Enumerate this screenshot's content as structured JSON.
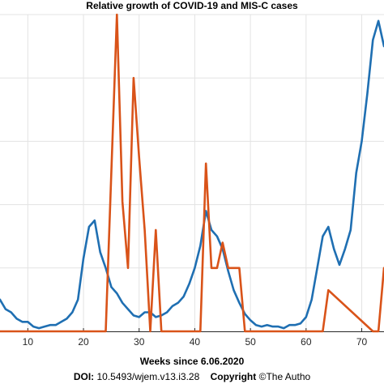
{
  "chart_data": {
    "type": "line",
    "title": "Relative growth of COVID-19 and MIS-C cases",
    "xlabel": "Weeks since 6.06.2020",
    "ylabel": "",
    "xlim": [
      5,
      74
    ],
    "ylim": [
      0,
      1
    ],
    "grid": true,
    "x_ticks": [
      10,
      20,
      30,
      40,
      50,
      60,
      70
    ],
    "x_tick_labels": [
      "10",
      "20",
      "30",
      "40",
      "50",
      "60",
      "70"
    ],
    "y_grid_values": [
      0.2,
      0.4,
      0.6,
      0.8,
      1.0
    ],
    "series": [
      {
        "color": "#1f6fb2",
        "x": [
          5,
          6,
          7,
          8,
          9,
          10,
          11,
          12,
          13,
          14,
          15,
          16,
          17,
          18,
          19,
          20,
          21,
          22,
          23,
          24,
          25,
          26,
          27,
          28,
          29,
          30,
          31,
          32,
          33,
          34,
          35,
          36,
          37,
          38,
          39,
          40,
          41,
          42,
          43,
          44,
          45,
          46,
          47,
          48,
          49,
          50,
          51,
          52,
          53,
          54,
          55,
          56,
          57,
          58,
          59,
          60,
          61,
          62,
          63,
          64,
          65,
          66,
          67,
          68,
          69,
          70,
          71,
          72,
          73,
          74
        ],
        "values": [
          0.1,
          0.07,
          0.06,
          0.04,
          0.03,
          0.03,
          0.015,
          0.01,
          0.015,
          0.02,
          0.02,
          0.03,
          0.04,
          0.06,
          0.1,
          0.23,
          0.33,
          0.35,
          0.25,
          0.2,
          0.14,
          0.12,
          0.09,
          0.07,
          0.05,
          0.045,
          0.06,
          0.06,
          0.045,
          0.05,
          0.06,
          0.08,
          0.09,
          0.11,
          0.15,
          0.2,
          0.27,
          0.38,
          0.32,
          0.3,
          0.26,
          0.19,
          0.13,
          0.09,
          0.055,
          0.035,
          0.02,
          0.015,
          0.02,
          0.015,
          0.015,
          0.01,
          0.02,
          0.02,
          0.025,
          0.045,
          0.1,
          0.2,
          0.3,
          0.33,
          0.26,
          0.21,
          0.26,
          0.32,
          0.5,
          0.6,
          0.75,
          0.92,
          0.98,
          0.9
        ]
      },
      {
        "color": "#d95319",
        "x": [
          5,
          24,
          26,
          27,
          28,
          29,
          30,
          31,
          32,
          33,
          34,
          40,
          41,
          42,
          43,
          44,
          45,
          46,
          47,
          48,
          49,
          62,
          63,
          64,
          72,
          73,
          74
        ],
        "values": [
          0,
          0,
          1.0,
          0.41,
          0.2,
          0.8,
          0.55,
          0.32,
          0,
          0.32,
          0,
          0,
          0,
          0.53,
          0.2,
          0.2,
          0.28,
          0.2,
          0.2,
          0.2,
          0,
          0,
          0,
          0.13,
          0,
          0,
          0.2
        ]
      }
    ]
  },
  "footer": {
    "doi_label": "DOI:",
    "doi_value": "10.5493/wjem.v13.i3.28",
    "copyright_label": "Copyright",
    "copyright_value": "©The Autho"
  }
}
